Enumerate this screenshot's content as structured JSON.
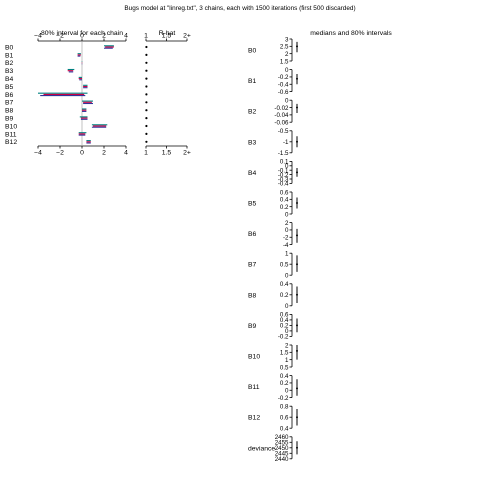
{
  "chart_data": {
    "type": "interval",
    "title": "Bugs model at \"linreg.txt\", 3 chains, each with 1500 iterations (first 500 discarded)",
    "left_panel": {
      "title": "80% interval for each chain",
      "xlim": [
        -4,
        4
      ],
      "ticks": [
        -4,
        -2,
        0,
        2,
        4
      ],
      "tick_labels": [
        "−4",
        "−2",
        "0",
        "2",
        "4"
      ],
      "params": [
        "B0",
        "B1",
        "B2",
        "B3",
        "B4",
        "B5",
        "B6",
        "B7",
        "B8",
        "B9",
        "B10",
        "B11",
        "B12"
      ],
      "chains": [
        {
          "color": "#008080",
          "intervals": [
            [
              2.0,
              2.9
            ],
            [
              -0.4,
              -0.1
            ],
            [
              -0.02,
              0.02
            ],
            [
              -1.3,
              -0.7
            ],
            [
              -0.3,
              0.0
            ],
            [
              0.1,
              0.5
            ],
            [
              -4.0,
              0.5
            ],
            [
              0.0,
              1.0
            ],
            [
              0.0,
              0.4
            ],
            [
              -0.2,
              0.5
            ],
            [
              0.9,
              2.3
            ],
            [
              -0.3,
              0.4
            ],
            [
              0.4,
              0.8
            ]
          ]
        },
        {
          "color": "#cc0044",
          "intervals": [
            [
              2.1,
              2.9
            ],
            [
              -0.4,
              -0.1
            ],
            [
              -0.02,
              0.02
            ],
            [
              -1.3,
              -0.8
            ],
            [
              -0.3,
              0.0
            ],
            [
              0.1,
              0.5
            ],
            [
              -3.5,
              0.2
            ],
            [
              0.1,
              0.9
            ],
            [
              0.0,
              0.4
            ],
            [
              -0.1,
              0.5
            ],
            [
              1.0,
              2.2
            ],
            [
              -0.3,
              0.3
            ],
            [
              0.4,
              0.8
            ]
          ]
        },
        {
          "color": "#333399",
          "intervals": [
            [
              2.0,
              2.8
            ],
            [
              -0.4,
              -0.15
            ],
            [
              -0.02,
              0.02
            ],
            [
              -1.2,
              -0.8
            ],
            [
              -0.25,
              0.0
            ],
            [
              0.1,
              0.5
            ],
            [
              -3.8,
              0.3
            ],
            [
              0.1,
              1.0
            ],
            [
              0.0,
              0.4
            ],
            [
              -0.1,
              0.5
            ],
            [
              0.9,
              2.2
            ],
            [
              -0.3,
              0.3
            ],
            [
              0.4,
              0.8
            ]
          ]
        }
      ]
    },
    "rhat_panel": {
      "title": "R-hat",
      "xlim": [
        1,
        2
      ],
      "ticks": [
        1,
        1.5,
        2
      ],
      "tick_labels": [
        "1",
        "1.5",
        "2+"
      ],
      "values": [
        1.01,
        1.01,
        1.01,
        1.01,
        1.01,
        1.01,
        1.01,
        1.01,
        1.01,
        1.01,
        1.01,
        1.01,
        1.01
      ]
    },
    "right_panel": {
      "title": "medians and 80% intervals",
      "params": [
        {
          "label": "B0",
          "ticks": [
            "3",
            "2.5",
            "2",
            "1.5"
          ],
          "range": [
            1.5,
            3
          ],
          "median": 2.5,
          "interval": [
            2.1,
            2.8
          ]
        },
        {
          "label": "B1",
          "ticks": [
            "0",
            "-0.2",
            "-0.4",
            "-0.6"
          ],
          "range": [
            -0.6,
            0
          ],
          "median": -0.25,
          "interval": [
            -0.4,
            -0.12
          ]
        },
        {
          "label": "B2",
          "ticks": [
            "0",
            "-0.02",
            "-0.04",
            "-0.06"
          ],
          "range": [
            -0.06,
            0
          ],
          "median": -0.02,
          "interval": [
            -0.035,
            -0.01
          ]
        },
        {
          "label": "B3",
          "ticks": [
            "-0.5",
            "-1",
            "-1.5"
          ],
          "range": [
            -1.5,
            -0.5
          ],
          "median": -1.0,
          "interval": [
            -1.25,
            -0.75
          ]
        },
        {
          "label": "B4",
          "ticks": [
            "0.1",
            "0",
            "-0.1",
            "-0.2",
            "-0.3",
            "-0.4"
          ],
          "range": [
            -0.4,
            0.1
          ],
          "median": -0.15,
          "interval": [
            -0.25,
            -0.05
          ]
        },
        {
          "label": "B5",
          "ticks": [
            "0.6",
            "0.4",
            "0.2",
            "0"
          ],
          "range": [
            0,
            0.6
          ],
          "median": 0.3,
          "interval": [
            0.15,
            0.45
          ]
        },
        {
          "label": "B6",
          "ticks": [
            "2",
            "0",
            "-2",
            "-4"
          ],
          "range": [
            -4,
            2
          ],
          "median": -1.5,
          "interval": [
            -3.5,
            0.3
          ]
        },
        {
          "label": "B7",
          "ticks": [
            "1",
            "0.5",
            "0"
          ],
          "range": [
            0,
            1
          ],
          "median": 0.5,
          "interval": [
            0.15,
            0.9
          ]
        },
        {
          "label": "B8",
          "ticks": [
            "0.4",
            "0.2",
            "0"
          ],
          "range": [
            0,
            0.4
          ],
          "median": 0.2,
          "interval": [
            0.05,
            0.35
          ]
        },
        {
          "label": "B9",
          "ticks": [
            "0.6",
            "0.4",
            "0.2",
            "0",
            "-0.2"
          ],
          "range": [
            -0.2,
            0.6
          ],
          "median": 0.2,
          "interval": [
            -0.05,
            0.45
          ]
        },
        {
          "label": "B10",
          "ticks": [
            "2",
            "1.5",
            "1",
            "0.5"
          ],
          "range": [
            0.5,
            2
          ],
          "median": 1.6,
          "interval": [
            1.0,
            2.0
          ]
        },
        {
          "label": "B11",
          "ticks": [
            "0.4",
            "0.2",
            "0",
            "-0.2"
          ],
          "range": [
            -0.2,
            0.4
          ],
          "median": 0.05,
          "interval": [
            -0.15,
            0.3
          ]
        },
        {
          "label": "B12",
          "ticks": [
            "0.8",
            "0.6",
            "0.4"
          ],
          "range": [
            0.4,
            0.8
          ],
          "median": 0.6,
          "interval": [
            0.45,
            0.75
          ]
        },
        {
          "label": "deviance",
          "ticks": [
            "2460",
            "2455",
            "2450",
            "2445",
            "2440"
          ],
          "range": [
            2440,
            2460
          ],
          "median": 2450,
          "interval": [
            2444,
            2456
          ]
        }
      ]
    }
  }
}
